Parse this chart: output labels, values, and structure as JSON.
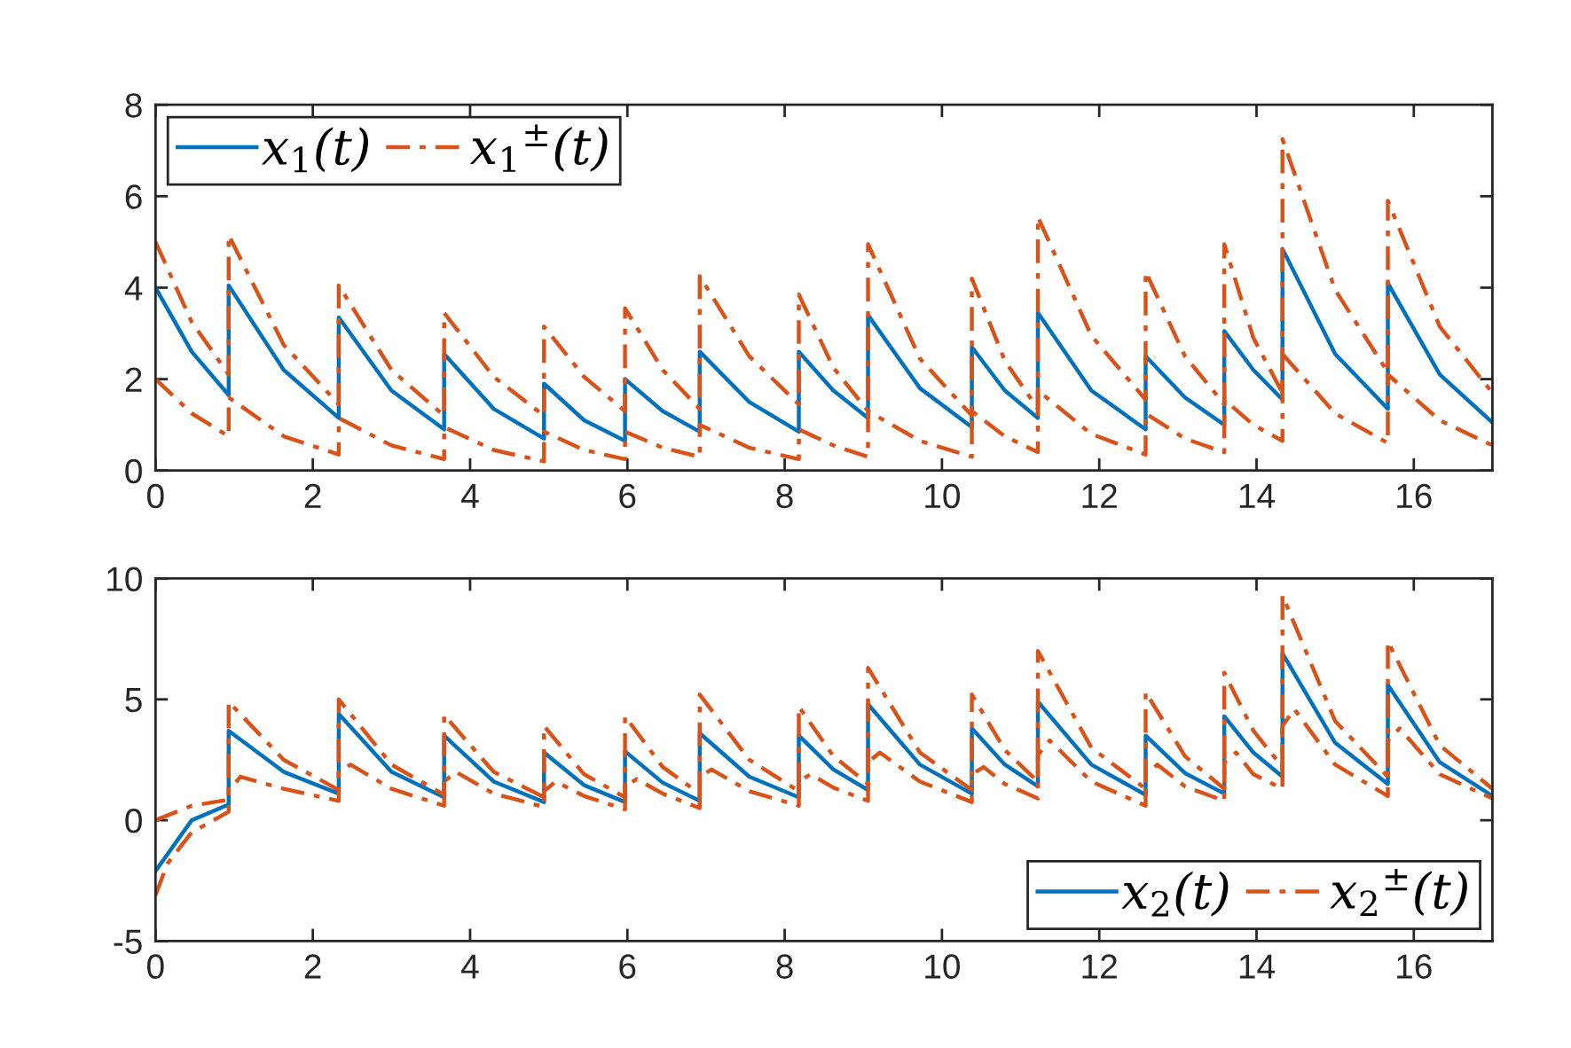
{
  "chart_data": [
    {
      "type": "line",
      "x": [
        0,
        0.46,
        0.93,
        0.93,
        1.63,
        2.33,
        2.33,
        3.0,
        3.67,
        3.67,
        4.3,
        4.94,
        4.94,
        5.45,
        5.97,
        5.97,
        6.45,
        6.92,
        6.92,
        7.55,
        8.18,
        8.18,
        8.62,
        9.06,
        9.06,
        9.72,
        10.38,
        10.38,
        10.8,
        11.22,
        11.22,
        11.9,
        12.59,
        12.59,
        13.09,
        13.59,
        13.59,
        13.96,
        14.33,
        14.33,
        15.0,
        15.67,
        15.67,
        16.33,
        17
      ],
      "series": [
        {
          "name": "x$_{1}$(t)",
          "color": "#0072bd",
          "line_style": "solid",
          "values": [
            4.0,
            2.6,
            1.65,
            4.05,
            2.2,
            1.15,
            3.35,
            1.75,
            0.9,
            2.55,
            1.35,
            0.7,
            1.9,
            1.1,
            0.65,
            2.0,
            1.3,
            0.85,
            2.6,
            1.5,
            0.85,
            2.6,
            1.75,
            1.15,
            3.4,
            1.8,
            0.95,
            2.7,
            1.75,
            1.15,
            3.45,
            1.75,
            0.9,
            2.5,
            1.6,
            1.0,
            3.05,
            2.2,
            1.55,
            4.85,
            2.55,
            1.35,
            4.1,
            2.1,
            1.05
          ]
        },
        {
          "name": "x$_{1}$$^{±}$(t)",
          "color": "#d95319",
          "line_style": "dashed",
          "values": [
            5.0,
            3.25,
            2.1,
            5.15,
            2.75,
            1.45,
            4.05,
            2.2,
            1.2,
            3.45,
            2.05,
            1.2,
            3.15,
            2.05,
            1.3,
            3.55,
            2.2,
            1.35,
            4.25,
            2.5,
            1.45,
            3.85,
            2.25,
            1.3,
            4.95,
            2.45,
            1.2,
            4.2,
            2.4,
            1.35,
            5.55,
            2.95,
            1.55,
            4.35,
            2.5,
            1.45,
            4.95,
            2.9,
            1.7,
            7.25,
            3.95,
            2.15,
            5.9,
            3.15,
            1.7
          ]
        },
        {
          "color": "#d95319",
          "line_style": "dashed",
          "values": [
            2.0,
            1.25,
            0.75,
            1.6,
            0.75,
            0.35,
            1.15,
            0.55,
            0.25,
            0.95,
            0.45,
            0.2,
            0.85,
            0.45,
            0.25,
            0.85,
            0.5,
            0.3,
            1.0,
            0.5,
            0.25,
            0.9,
            0.55,
            0.3,
            1.3,
            0.65,
            0.3,
            1.3,
            0.75,
            0.4,
            1.75,
            0.8,
            0.35,
            1.25,
            0.7,
            0.4,
            1.55,
            1.0,
            0.65,
            2.55,
            1.25,
            0.6,
            2.1,
            1.1,
            0.55
          ]
        }
      ],
      "xlim": [
        0,
        17
      ],
      "ylim": [
        0,
        8
      ],
      "xticks": [
        0,
        2,
        4,
        6,
        8,
        10,
        12,
        14,
        16
      ],
      "yticks": [
        0,
        2,
        4,
        6,
        8
      ],
      "legend": "top left",
      "grid": false
    },
    {
      "type": "line",
      "x": [
        0,
        0.46,
        0.93,
        0.93,
        1.63,
        2.33,
        2.33,
        3.0,
        3.67,
        3.67,
        4.3,
        4.94,
        4.94,
        5.45,
        5.97,
        5.97,
        6.45,
        6.92,
        6.92,
        7.55,
        8.18,
        8.18,
        8.62,
        9.06,
        9.06,
        9.72,
        10.38,
        10.38,
        10.8,
        11.22,
        11.22,
        11.9,
        12.59,
        12.59,
        13.09,
        13.59,
        13.59,
        13.96,
        14.33,
        14.33,
        15.0,
        15.67,
        15.67,
        16.33,
        17
      ],
      "series": [
        {
          "name": "x$_{2}$(t)",
          "color": "#0072bd",
          "line_style": "solid",
          "values": [
            -2.1,
            0.0,
            0.65,
            3.7,
            2.0,
            1.1,
            4.4,
            2.0,
            0.95,
            3.5,
            1.6,
            0.75,
            2.8,
            1.45,
            0.75,
            2.85,
            1.55,
            0.8,
            3.6,
            1.8,
            0.95,
            3.5,
            2.1,
            1.25,
            4.8,
            2.3,
            1.1,
            3.8,
            2.3,
            1.4,
            4.9,
            2.3,
            1.05,
            3.5,
            1.95,
            1.1,
            4.3,
            2.8,
            1.8,
            6.9,
            3.2,
            1.5,
            5.6,
            2.4,
            1.0
          ]
        },
        {
          "name": "x$_{2}$$^{±}$(t)",
          "color": "#d95319",
          "line_style": "dashed",
          "values": [
            0,
            0.6,
            0.85,
            4.9,
            2.5,
            1.25,
            5.0,
            2.3,
            1.05,
            4.35,
            2.0,
            0.95,
            3.9,
            1.9,
            0.95,
            4.3,
            2.2,
            1.1,
            5.2,
            2.5,
            1.2,
            4.7,
            2.65,
            1.5,
            6.3,
            2.8,
            1.25,
            5.2,
            2.9,
            1.6,
            7.0,
            3.0,
            1.3,
            5.3,
            2.65,
            1.3,
            6.1,
            3.7,
            2.2,
            9.3,
            4.1,
            1.8,
            7.4,
            3.1,
            1.3
          ]
        },
        {
          "color": "#d95319",
          "line_style": "dashed",
          "x": [
            0,
            0.15,
            0.46,
            0.93,
            0.93,
            1.08,
            1.63,
            2.33,
            2.33,
            2.48,
            3.0,
            3.67,
            3.67,
            3.82,
            4.3,
            4.94,
            4.94,
            5.09,
            5.45,
            5.97,
            5.97,
            6.12,
            6.45,
            6.92,
            6.92,
            7.07,
            7.55,
            8.18,
            8.18,
            8.33,
            8.62,
            9.06,
            9.06,
            9.21,
            9.72,
            10.38,
            10.38,
            10.53,
            10.8,
            11.22,
            11.22,
            11.37,
            11.9,
            12.59,
            12.59,
            12.74,
            13.09,
            13.59,
            13.59,
            13.74,
            13.96,
            14.33,
            14.33,
            14.48,
            15.0,
            15.67,
            15.67,
            15.82,
            16.33,
            17
          ],
          "values": [
            -3.1,
            -1.8,
            -0.5,
            0.35,
            1.2,
            1.8,
            1.3,
            0.8,
            2.0,
            2.3,
            1.3,
            0.6,
            1.6,
            2.0,
            1.1,
            0.55,
            1.2,
            1.6,
            1.0,
            0.45,
            1.4,
            1.7,
            1.1,
            0.5,
            1.8,
            2.1,
            1.2,
            0.6,
            1.6,
            1.9,
            1.35,
            0.8,
            2.4,
            2.8,
            1.6,
            0.75,
            1.9,
            2.2,
            1.5,
            0.9,
            2.7,
            3.3,
            1.6,
            0.6,
            1.9,
            2.3,
            1.4,
            0.8,
            2.4,
            2.8,
            1.9,
            1.3,
            3.9,
            4.6,
            2.3,
            1.0,
            3.3,
            3.8,
            1.9,
            0.9
          ]
        }
      ],
      "xlim": [
        0,
        17
      ],
      "ylim": [
        -5,
        10
      ],
      "xticks": [
        0,
        2,
        4,
        6,
        8,
        10,
        12,
        14,
        16
      ],
      "yticks": [
        -5,
        0,
        5,
        10
      ],
      "legend": "bottom right",
      "grid": false
    }
  ]
}
